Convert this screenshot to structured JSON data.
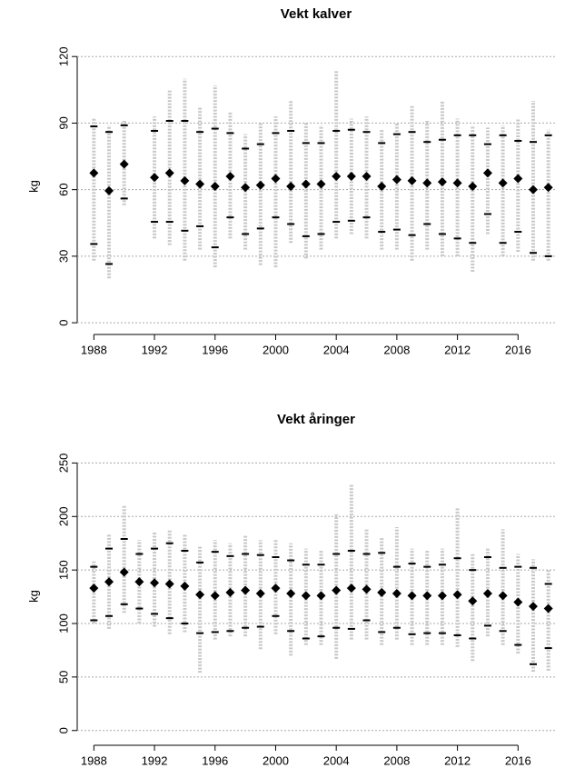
{
  "chart_data": [
    {
      "type": "strip",
      "title": "Vekt kalver",
      "y_label": "kg",
      "x": [
        1988,
        1989,
        1990,
        1992,
        1993,
        1994,
        1995,
        1996,
        1997,
        1998,
        1999,
        2000,
        2001,
        2002,
        2003,
        2004,
        2005,
        2006,
        2007,
        2008,
        2009,
        2010,
        2011,
        2012,
        2013,
        2014,
        2015,
        2016,
        2017,
        2018
      ],
      "means": [
        67.5,
        59.5,
        71.5,
        65.5,
        67.5,
        64,
        62.5,
        61.5,
        66,
        61,
        62,
        65,
        61.5,
        62.5,
        62.5,
        66,
        66,
        66,
        61.5,
        64.5,
        64,
        63,
        63.5,
        63,
        61.5,
        67.5,
        63,
        65,
        60,
        61
      ],
      "lows": [
        35.5,
        26.5,
        56,
        45.5,
        45.5,
        41.5,
        43.5,
        34,
        47.5,
        40,
        42.5,
        47.5,
        44.5,
        39,
        40,
        45.5,
        46,
        47.5,
        41,
        42,
        39.5,
        44.5,
        40,
        38,
        36,
        49,
        36,
        41,
        31.5,
        30
      ],
      "highs": [
        88.5,
        86,
        89,
        86.5,
        91,
        91,
        86,
        87.5,
        85.5,
        78.5,
        80.5,
        85.5,
        86.5,
        81,
        81,
        86.5,
        87,
        86,
        81,
        85,
        86,
        81.5,
        82.5,
        84.5,
        84.5,
        80.5,
        84.5,
        82,
        81.5,
        84.5
      ],
      "mins": [
        28,
        20,
        53,
        38,
        35,
        28,
        33,
        25,
        38,
        33,
        26,
        25,
        36,
        29,
        33,
        38,
        40,
        38,
        33,
        33,
        28,
        33,
        30,
        30,
        23,
        40,
        30,
        32,
        28,
        28
      ],
      "maxs": [
        92,
        89,
        91,
        93,
        105,
        110,
        97,
        107,
        95,
        85,
        90,
        93,
        100,
        90,
        89,
        114,
        92,
        93,
        87,
        90,
        98,
        91,
        100,
        92,
        89,
        88,
        89,
        92,
        100,
        87
      ],
      "xlim": [
        1986.9,
        2018.5
      ],
      "xticks": [
        1988,
        1992,
        1996,
        2000,
        2004,
        2008,
        2012,
        2016
      ],
      "ylim": [
        -2,
        125
      ],
      "yticks": [
        0,
        30,
        60,
        90,
        120
      ],
      "grid": true
    },
    {
      "type": "strip",
      "title": "Vekt åringer",
      "y_label": "kg",
      "x": [
        1988,
        1989,
        1990,
        1991,
        1992,
        1993,
        1994,
        1995,
        1996,
        1997,
        1998,
        1999,
        2000,
        2001,
        2002,
        2003,
        2004,
        2005,
        2006,
        2007,
        2008,
        2009,
        2010,
        2011,
        2012,
        2013,
        2014,
        2015,
        2016,
        2017,
        2018
      ],
      "means": [
        133,
        139,
        148,
        139,
        138,
        137,
        135,
        127,
        126,
        129,
        131,
        128,
        133,
        128,
        126,
        126,
        131,
        133,
        132,
        129,
        128,
        126,
        126,
        126,
        127,
        121,
        128,
        126,
        120,
        116,
        114
      ],
      "lows": [
        103,
        107,
        118,
        114,
        109,
        105,
        100,
        91,
        92,
        93,
        96,
        97,
        107,
        93,
        86,
        88,
        96,
        95,
        103,
        92,
        96,
        90,
        91,
        91,
        89,
        86,
        98,
        93,
        80,
        62,
        77
      ],
      "highs": [
        153,
        170,
        179,
        165,
        170,
        175,
        168,
        157,
        167,
        163,
        165,
        164,
        162,
        159,
        155,
        155,
        165,
        168,
        165,
        166,
        153,
        156,
        153,
        155,
        161,
        150,
        162,
        152,
        153,
        152,
        137
      ],
      "mins": [
        100,
        95,
        110,
        100,
        97,
        90,
        92,
        54,
        85,
        88,
        88,
        76,
        90,
        70,
        80,
        80,
        67,
        85,
        85,
        80,
        85,
        80,
        80,
        80,
        78,
        65,
        88,
        80,
        72,
        55,
        56
      ],
      "maxs": [
        158,
        183,
        210,
        178,
        185,
        188,
        183,
        172,
        178,
        175,
        183,
        178,
        178,
        175,
        170,
        168,
        202,
        230,
        188,
        180,
        190,
        170,
        168,
        170,
        208,
        165,
        170,
        188,
        165,
        160,
        150
      ],
      "xlim": [
        1986.9,
        2018.5
      ],
      "xticks": [
        1988,
        1992,
        1996,
        2000,
        2004,
        2008,
        2012,
        2016
      ],
      "ylim": [
        -7,
        258
      ],
      "yticks": [
        0,
        50,
        100,
        150,
        200,
        250
      ],
      "grid": true
    }
  ]
}
